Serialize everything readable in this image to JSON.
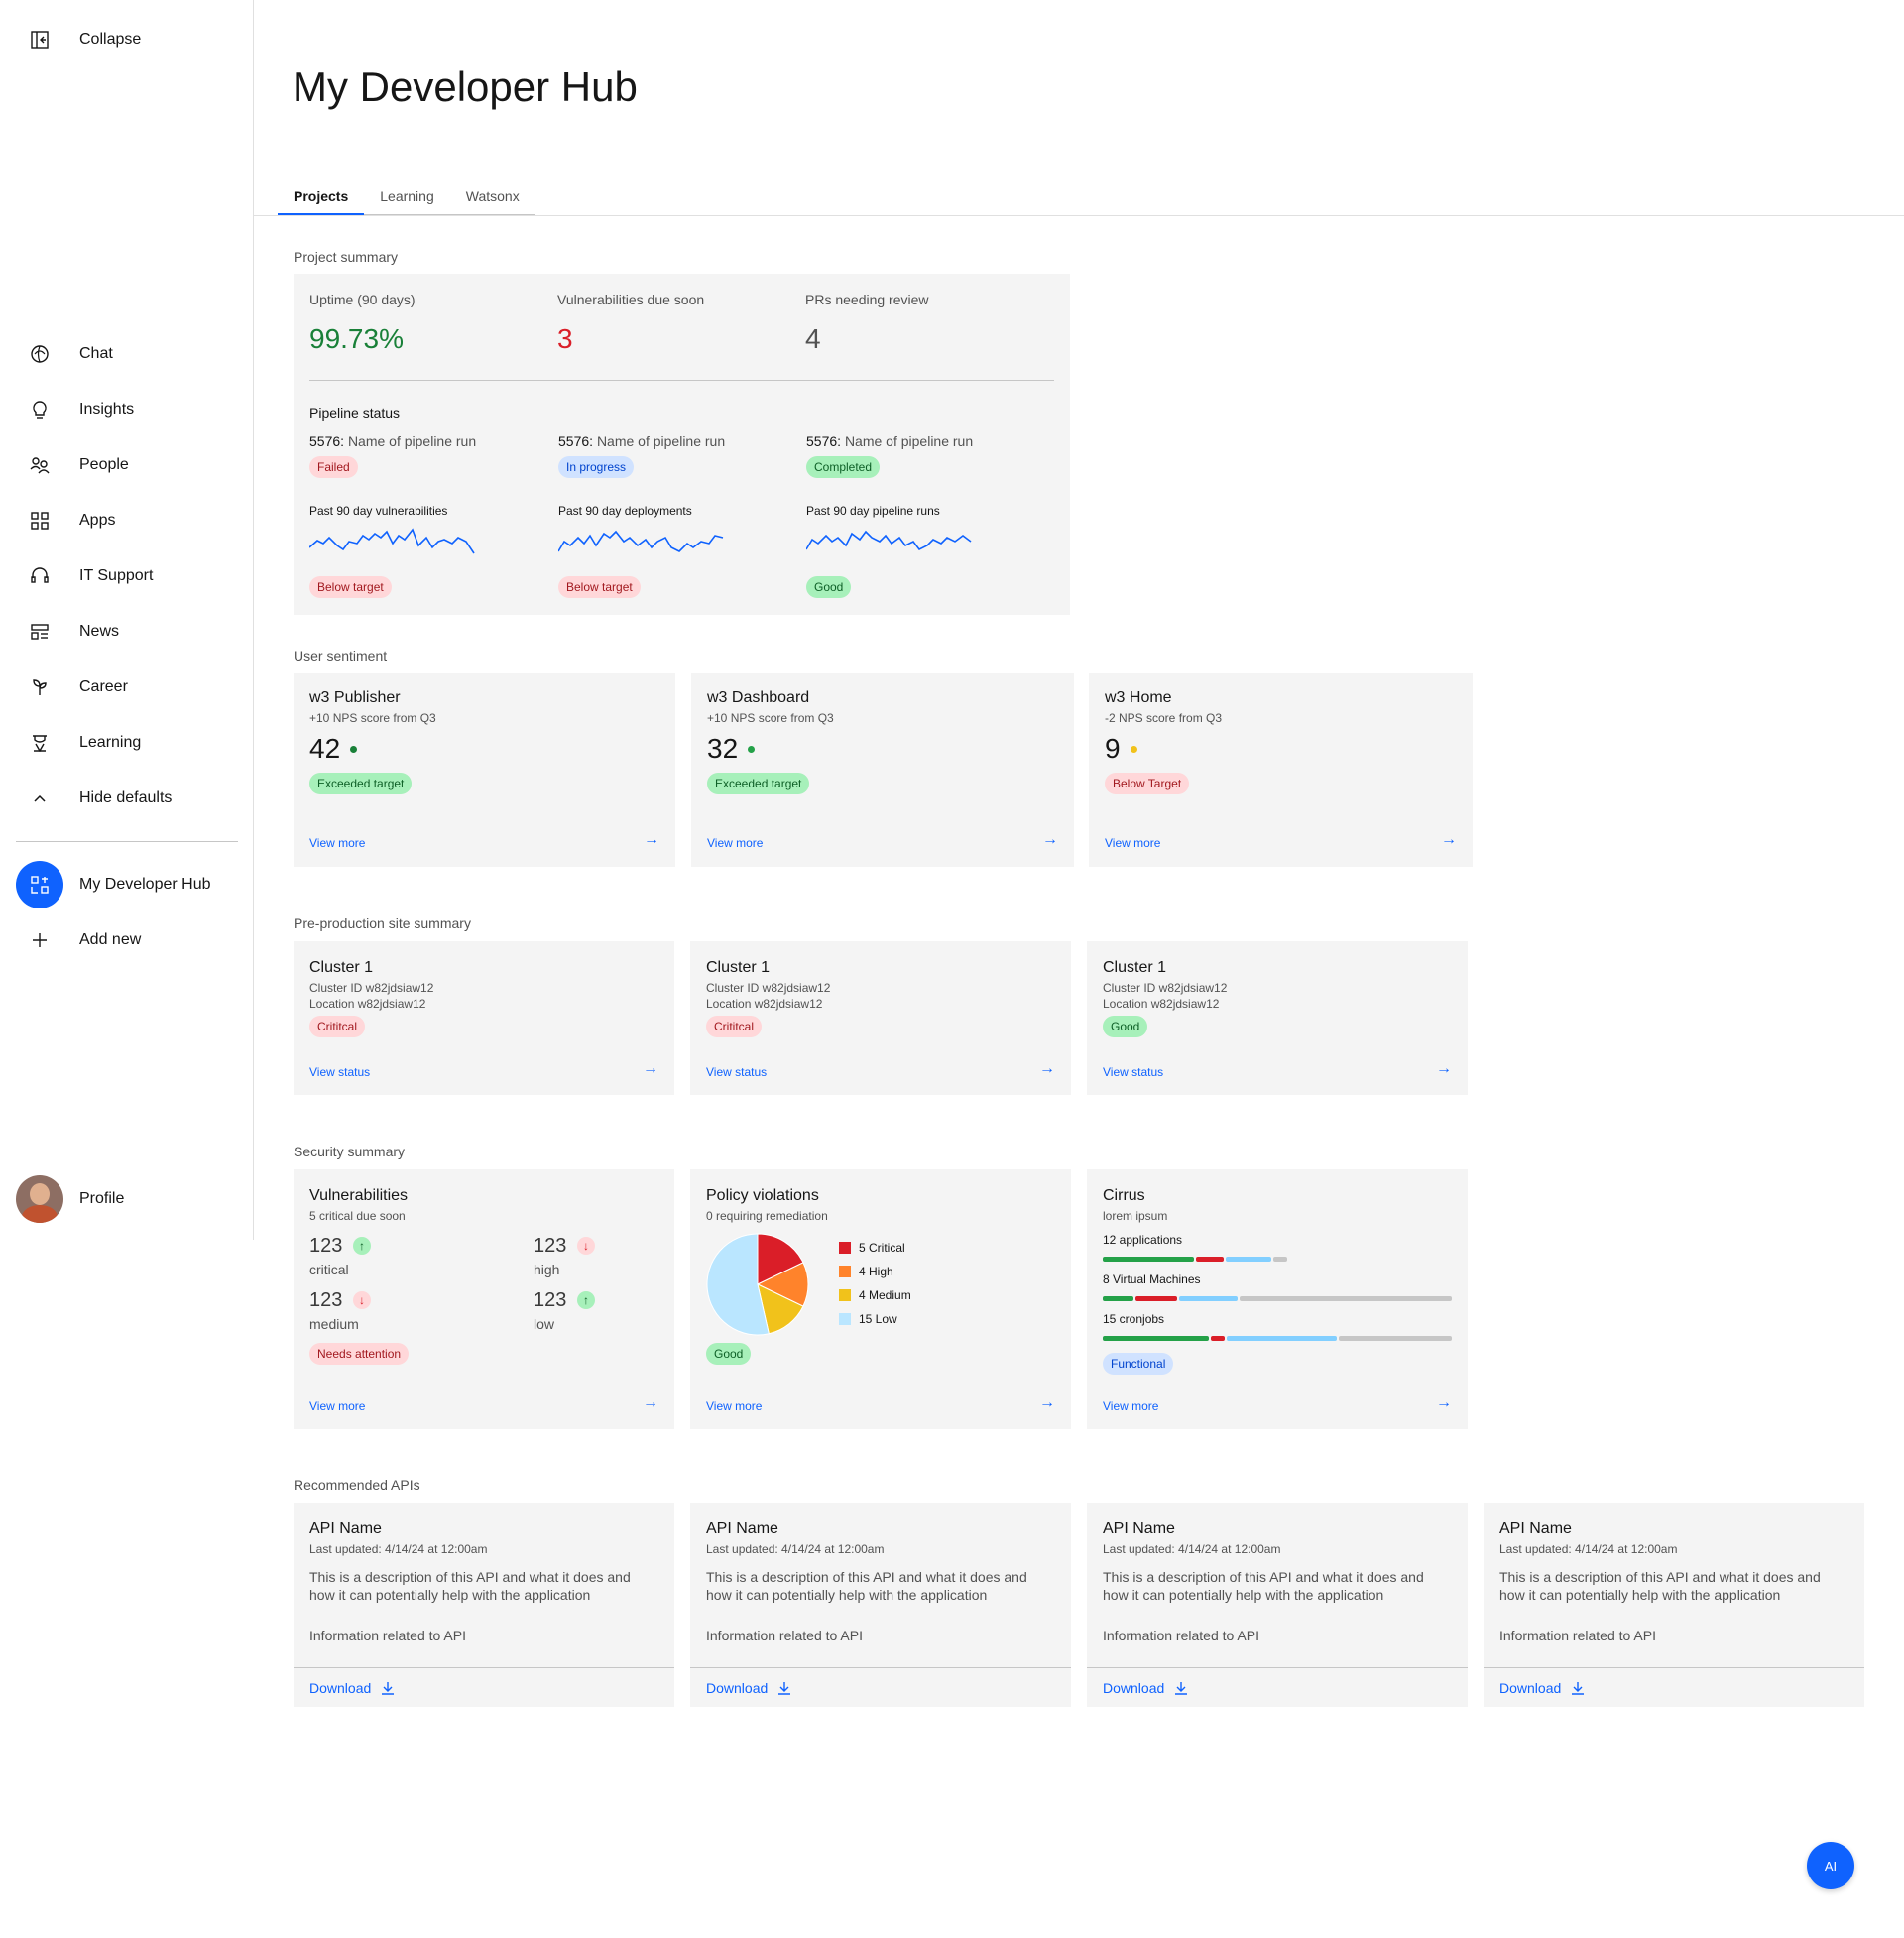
{
  "sidebar": {
    "collapse": "Collapse",
    "items": [
      {
        "label": "Chat",
        "icon": "chat-icon"
      },
      {
        "label": "Insights",
        "icon": "lightbulb-icon"
      },
      {
        "label": "People",
        "icon": "people-icon"
      },
      {
        "label": "Apps",
        "icon": "apps-grid-icon"
      },
      {
        "label": "IT Support",
        "icon": "headset-icon"
      },
      {
        "label": "News",
        "icon": "news-icon"
      },
      {
        "label": "Career",
        "icon": "sprout-icon"
      },
      {
        "label": "Learning",
        "icon": "learning-icon"
      },
      {
        "label": "Hide defaults",
        "icon": "chevron-up-icon"
      }
    ],
    "active_item": "My Developer Hub",
    "add_new": "Add new",
    "profile": "Profile"
  },
  "page": {
    "title": "My Developer Hub",
    "tabs": [
      "Projects",
      "Learning",
      "Watsonx"
    ],
    "active_tab": "Projects"
  },
  "project_summary": {
    "section_title": "Project summary",
    "metrics": [
      {
        "label": "Uptime (90 days)",
        "value": "99.73%",
        "color": "#198038"
      },
      {
        "label": "Vulnerabilities due soon",
        "value": "3",
        "color": "#da1e28"
      },
      {
        "label": "PRs needing review",
        "value": "4",
        "color": "#525252"
      }
    ],
    "pipeline_title": "Pipeline status",
    "pipelines": [
      {
        "id": "5576:",
        "name": "Name of pipeline run",
        "status": "Failed",
        "status_color": "red",
        "spark_label": "Past 90 day vulnerabilities",
        "spark_status": "Below target",
        "spark_color": "red"
      },
      {
        "id": "5576:",
        "name": "Name of pipeline run",
        "status": "In progress",
        "status_color": "blue",
        "spark_label": "Past 90 day deployments",
        "spark_status": "Below target",
        "spark_color": "red"
      },
      {
        "id": "5576:",
        "name": "Name of pipeline run",
        "status": "Completed",
        "status_color": "green",
        "spark_label": "Past 90 day pipeline runs",
        "spark_status": "Good",
        "spark_color": "green"
      }
    ]
  },
  "user_sentiment": {
    "section_title": "User sentiment",
    "cards": [
      {
        "title": "w3 Publisher",
        "sub": "+10 NPS score from Q3",
        "value": "42",
        "dot": "#198038",
        "tag": "Exceeded target",
        "tag_color": "green",
        "link": "View more"
      },
      {
        "title": "w3 Dashboard",
        "sub": "+10 NPS score from Q3",
        "value": "32",
        "dot": "#24a148",
        "tag": "Exceeded target",
        "tag_color": "green",
        "link": "View more"
      },
      {
        "title": "w3 Home",
        "sub": "-2 NPS score from Q3",
        "value": "9",
        "dot": "#f1c21b",
        "tag": "Below Target",
        "tag_color": "red",
        "link": "View more"
      }
    ]
  },
  "preprod": {
    "section_title": "Pre-production site summary",
    "cards": [
      {
        "title": "Cluster 1",
        "id": "Cluster ID w82jdsiaw12",
        "location": "Location w82jdsiaw12",
        "tag": "Crititcal",
        "tag_color": "red",
        "link": "View status"
      },
      {
        "title": "Cluster 1",
        "id": "Cluster ID w82jdsiaw12",
        "location": "Location w82jdsiaw12",
        "tag": "Crititcal",
        "tag_color": "red",
        "link": "View status"
      },
      {
        "title": "Cluster 1",
        "id": "Cluster ID w82jdsiaw12",
        "location": "Location w82jdsiaw12",
        "tag": "Good",
        "tag_color": "green",
        "link": "View status"
      }
    ]
  },
  "security": {
    "section_title": "Security summary",
    "vulnerabilities": {
      "title": "Vulnerabilities",
      "sub": "5 critical due soon",
      "items": [
        {
          "value": "123",
          "label": "critical",
          "trend": "up"
        },
        {
          "value": "123",
          "label": "high",
          "trend": "down"
        },
        {
          "value": "123",
          "label": "medium",
          "trend": "down"
        },
        {
          "value": "123",
          "label": "low",
          "trend": "up"
        }
      ],
      "tag": "Needs attention",
      "link": "View more"
    },
    "policy": {
      "title": "Policy violations",
      "sub": "0 requiring remediation",
      "tag": "Good",
      "link": "View more"
    },
    "cirrus": {
      "title": "Cirrus",
      "sub": "lorem ipsum",
      "rows": [
        {
          "label": "12 applications",
          "segments": [
            {
              "share": 0.26,
              "color": "#24a148"
            },
            {
              "share": 0.08,
              "color": "#da1e28"
            },
            {
              "share": 0.13,
              "color": "#82cfff"
            },
            {
              "share": 0.04,
              "color": "#c6c6c6"
            }
          ]
        },
        {
          "label": "8 Virtual Machines",
          "segments": [
            {
              "share": 0.09,
              "color": "#24a148"
            },
            {
              "share": 0.12,
              "color": "#da1e28"
            },
            {
              "share": 0.17,
              "color": "#82cfff"
            },
            {
              "share": 0.62,
              "color": "#c6c6c6"
            }
          ]
        },
        {
          "label": "15 cronjobs",
          "segments": [
            {
              "share": 0.31,
              "color": "#24a148"
            },
            {
              "share": 0.04,
              "color": "#da1e28"
            },
            {
              "share": 0.32,
              "color": "#82cfff"
            },
            {
              "share": 0.33,
              "color": "#c6c6c6"
            }
          ]
        }
      ],
      "tag": "Functional",
      "link": "View more"
    }
  },
  "chart_data": {
    "type": "pie",
    "title": "",
    "categories": [
      "5 Critical",
      "4 High",
      "4 Medium",
      "15 Low"
    ],
    "values": [
      5,
      4,
      4,
      15
    ],
    "colors": [
      "#da1e28",
      "#ff832b",
      "#f1c21b",
      "#bae6ff"
    ]
  },
  "apis": {
    "section_title": "Recommended APIs",
    "cards": [
      {
        "title": "API Name",
        "updated": "Last updated: 4/14/24 at 12:00am",
        "desc": "This is a description of this API and what it does and how it can potentially help with the application",
        "info": "Information related to API",
        "download": "Download"
      },
      {
        "title": "API Name",
        "updated": "Last updated: 4/14/24 at 12:00am",
        "desc": "This is a description of this API and what it does and how it can potentially help with the application",
        "info": "Information related to API",
        "download": "Download"
      },
      {
        "title": "API Name",
        "updated": "Last updated: 4/14/24 at 12:00am",
        "desc": "This is a description of this API and what it does and how it can potentially help with the application",
        "info": "Information related to API",
        "download": "Download"
      },
      {
        "title": "API Name",
        "updated": "Last updated: 4/14/24 at 12:00am",
        "desc": "This is a description of this API and what it does and how it can potentially help with the application",
        "info": "Information related to API",
        "download": "Download"
      }
    ]
  },
  "fab": {
    "label": "AI"
  }
}
